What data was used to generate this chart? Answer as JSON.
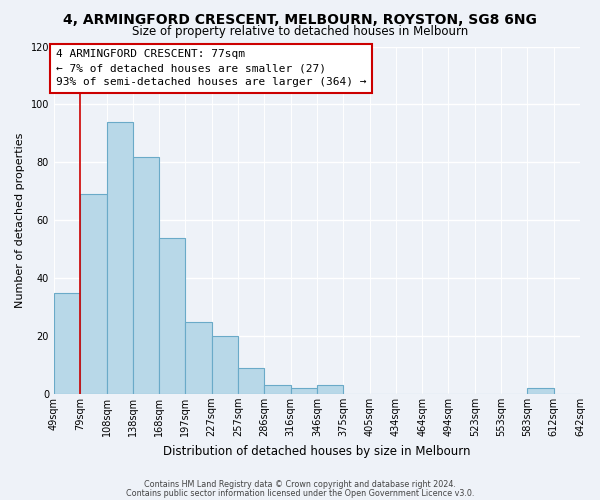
{
  "title": "4, ARMINGFORD CRESCENT, MELBOURN, ROYSTON, SG8 6NG",
  "subtitle": "Size of property relative to detached houses in Melbourn",
  "xlabel": "Distribution of detached houses by size in Melbourn",
  "ylabel": "Number of detached properties",
  "bar_values": [
    35,
    69,
    94,
    82,
    54,
    25,
    20,
    9,
    3,
    2,
    3,
    0,
    0,
    0,
    0,
    0,
    0,
    0,
    2,
    0
  ],
  "bar_labels": [
    "49sqm",
    "79sqm",
    "108sqm",
    "138sqm",
    "168sqm",
    "197sqm",
    "227sqm",
    "257sqm",
    "286sqm",
    "316sqm",
    "346sqm",
    "375sqm",
    "405sqm",
    "434sqm",
    "464sqm",
    "494sqm",
    "523sqm",
    "553sqm",
    "583sqm",
    "612sqm",
    "642sqm"
  ],
  "bar_color": "#b8d8e8",
  "bar_edge_color": "#6aaac8",
  "vline_x": 1,
  "vline_color": "#cc0000",
  "ylim": [
    0,
    120
  ],
  "yticks": [
    0,
    20,
    40,
    60,
    80,
    100,
    120
  ],
  "annotation_title": "4 ARMINGFORD CRESCENT: 77sqm",
  "annotation_line1": "← 7% of detached houses are smaller (27)",
  "annotation_line2": "93% of semi-detached houses are larger (364) →",
  "annotation_box_facecolor": "#ffffff",
  "annotation_box_edgecolor": "#cc0000",
  "footer_line1": "Contains HM Land Registry data © Crown copyright and database right 2024.",
  "footer_line2": "Contains public sector information licensed under the Open Government Licence v3.0.",
  "fig_facecolor": "#eef2f8",
  "plot_facecolor": "#eef2f8",
  "grid_color": "#ffffff",
  "title_fontsize": 10,
  "subtitle_fontsize": 8.5,
  "ylabel_fontsize": 8,
  "xlabel_fontsize": 8.5,
  "tick_fontsize": 7,
  "footer_fontsize": 5.8,
  "ann_fontsize": 8
}
